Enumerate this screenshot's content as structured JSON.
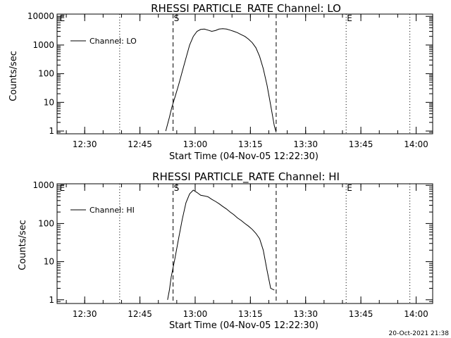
{
  "footer_timestamp": "20-Oct-2021 21:38",
  "chart_data": [
    {
      "type": "line",
      "title": "RHESSI PARTICLE_RATE Channel: LO",
      "xlabel": "Start Time (04-Nov-05 12:22:30)",
      "ylabel": "Counts/sec",
      "yscale": "log",
      "ylim": [
        0.8,
        12000
      ],
      "ytick_labels": [
        "1",
        "10",
        "100",
        "1000",
        "10000"
      ],
      "ytick_values": [
        1,
        10,
        100,
        1000,
        10000
      ],
      "xtick_labels": [
        "12:30",
        "12:45",
        "13:00",
        "13:15",
        "13:30",
        "13:45",
        "14:00"
      ],
      "x_minutes_after_start": [
        7.5,
        22.5,
        37.5,
        52.5,
        67.5,
        82.5,
        97.5
      ],
      "xlim_minutes": [
        0,
        102
      ],
      "legend": {
        "label": "Channel: LO",
        "position": "top-left"
      },
      "markers": [
        {
          "label": "E",
          "minute": 0.5,
          "style": "none"
        },
        {
          "label": "S",
          "minute": 31.5,
          "style": "dashed"
        },
        {
          "label": "E",
          "minute": 78.5,
          "style": "none"
        }
      ],
      "vlines_dashed_minutes": [
        31.5,
        59.5
      ],
      "vlines_dotted_minutes": [
        17,
        78.5,
        95.8
      ],
      "series": [
        {
          "name": "Channel: LO",
          "x_minutes": [
            29.5,
            30.5,
            31.2,
            32,
            33,
            34,
            35,
            36,
            37,
            38,
            39,
            40,
            41,
            42,
            43,
            44,
            45,
            46,
            47,
            48,
            49,
            50,
            51,
            52,
            53,
            54,
            55,
            56,
            57,
            58,
            59,
            59.5
          ],
          "values": [
            1,
            3,
            7,
            15,
            40,
            120,
            350,
            1000,
            2000,
            3000,
            3500,
            3600,
            3300,
            3000,
            3200,
            3600,
            3700,
            3600,
            3300,
            3000,
            2700,
            2300,
            2000,
            1600,
            1200,
            800,
            400,
            150,
            40,
            8,
            1.5,
            0.9
          ]
        }
      ]
    },
    {
      "type": "line",
      "title": "RHESSI PARTICLE_RATE Channel: HI",
      "xlabel": "Start Time (04-Nov-05 12:22:30)",
      "ylabel": "Counts/sec",
      "yscale": "log",
      "ylim": [
        0.8,
        1100
      ],
      "ytick_labels": [
        "1",
        "10",
        "100",
        "1000"
      ],
      "ytick_values": [
        1,
        10,
        100,
        1000
      ],
      "xtick_labels": [
        "12:30",
        "12:45",
        "13:00",
        "13:15",
        "13:30",
        "13:45",
        "14:00"
      ],
      "x_minutes_after_start": [
        7.5,
        22.5,
        37.5,
        52.5,
        67.5,
        82.5,
        97.5
      ],
      "xlim_minutes": [
        0,
        102
      ],
      "legend": {
        "label": "Channel: HI",
        "position": "top-left"
      },
      "markers": [
        {
          "label": "E",
          "minute": 0.5,
          "style": "none"
        },
        {
          "label": "S",
          "minute": 31.5,
          "style": "dashed"
        },
        {
          "label": "E",
          "minute": 78.5,
          "style": "none"
        }
      ],
      "vlines_dashed_minutes": [
        31.5,
        59.5
      ],
      "vlines_dotted_minutes": [
        17,
        78.5,
        95.8
      ],
      "series": [
        {
          "name": "Channel: HI",
          "x_minutes": [
            30,
            30.5,
            31,
            32,
            33,
            34,
            35,
            36,
            37,
            38,
            39,
            40,
            41,
            42,
            43,
            44,
            45,
            46,
            47,
            48,
            49,
            50,
            51,
            52,
            53,
            54,
            55,
            56,
            57,
            58,
            59
          ],
          "values": [
            1,
            1.8,
            4,
            12,
            40,
            130,
            350,
            600,
            750,
            650,
            550,
            530,
            500,
            430,
            380,
            330,
            280,
            240,
            200,
            170,
            140,
            120,
            100,
            85,
            70,
            55,
            40,
            20,
            6,
            2,
            1.8
          ]
        }
      ]
    }
  ]
}
